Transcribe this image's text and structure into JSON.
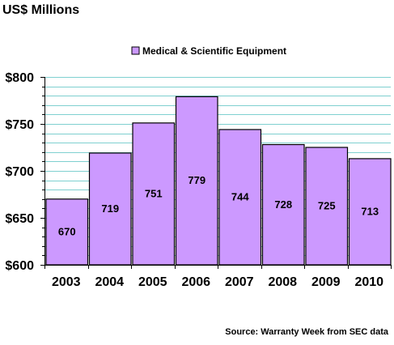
{
  "chart_data": {
    "type": "bar",
    "title": "US$ Millions",
    "categories": [
      "2003",
      "2004",
      "2005",
      "2006",
      "2007",
      "2008",
      "2009",
      "2010"
    ],
    "series": [
      {
        "name": "Medical & Scientific Equipment",
        "values": [
          670,
          719,
          751,
          779,
          744,
          728,
          725,
          713
        ],
        "color": "#cc99ff"
      }
    ],
    "value_labels": [
      "670",
      "719",
      "751",
      "779",
      "744",
      "728",
      "725",
      "713"
    ],
    "y_ticks": [
      600,
      650,
      700,
      750,
      800
    ],
    "y_tick_labels": [
      "$600",
      "$650",
      "$700",
      "$750",
      "$800"
    ],
    "ylim": [
      600,
      800
    ],
    "y_minor_step": 10,
    "grid": true,
    "grid_color": "#7fd0d0",
    "legend_position": "top-center",
    "source": "Source: Warranty Week from SEC data",
    "bar_outline_color": "#000000"
  }
}
